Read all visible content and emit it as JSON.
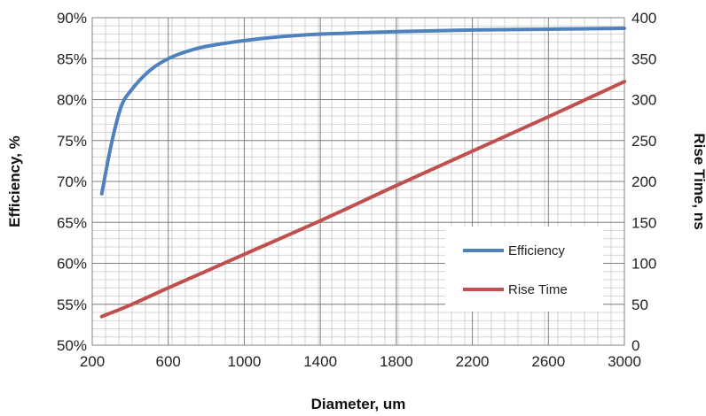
{
  "chart_data": {
    "type": "line",
    "title": "",
    "xlabel": "Diameter, um",
    "ylabel_left": "Efficiency, %",
    "ylabel_right": "Rise Time, ns",
    "xlim": [
      200,
      3000
    ],
    "ylim_left": [
      50,
      90
    ],
    "ylim_right": [
      0,
      400
    ],
    "x_ticks": [
      200,
      600,
      1000,
      1400,
      1800,
      2200,
      2600,
      3000
    ],
    "x_tick_labels": [
      "200",
      "600",
      "1000",
      "1400",
      "1800",
      "2200",
      "2600",
      "3000"
    ],
    "y_left_ticks": [
      50,
      55,
      60,
      65,
      70,
      75,
      80,
      85,
      90
    ],
    "y_left_tick_labels": [
      "50%",
      "55%",
      "60%",
      "65%",
      "70%",
      "75%",
      "80%",
      "85%",
      "90%"
    ],
    "y_right_ticks": [
      0,
      50,
      100,
      150,
      200,
      250,
      300,
      350,
      400
    ],
    "y_right_tick_labels": [
      "0",
      "50",
      "100",
      "150",
      "200",
      "250",
      "300",
      "350",
      "400"
    ],
    "grid": true,
    "legend_position": "bottom-right",
    "series": [
      {
        "name": "Efficiency",
        "axis": "left",
        "color": "#4F81BD",
        "x": [
          250,
          300,
          350,
          400,
          500,
          600,
          700,
          800,
          1000,
          1200,
          1400,
          1800,
          2200,
          2600,
          3000
        ],
        "y": [
          68.5,
          74.5,
          79.0,
          81.0,
          83.5,
          85.0,
          85.9,
          86.5,
          87.2,
          87.7,
          88.0,
          88.3,
          88.5,
          88.6,
          88.7
        ]
      },
      {
        "name": "Rise Time",
        "axis": "right",
        "color": "#C0504D",
        "x": [
          250,
          400,
          600,
          1000,
          1400,
          1800,
          2200,
          2600,
          3000
        ],
        "y": [
          35,
          49,
          70,
          111,
          152,
          195,
          237,
          279,
          322
        ]
      }
    ]
  }
}
